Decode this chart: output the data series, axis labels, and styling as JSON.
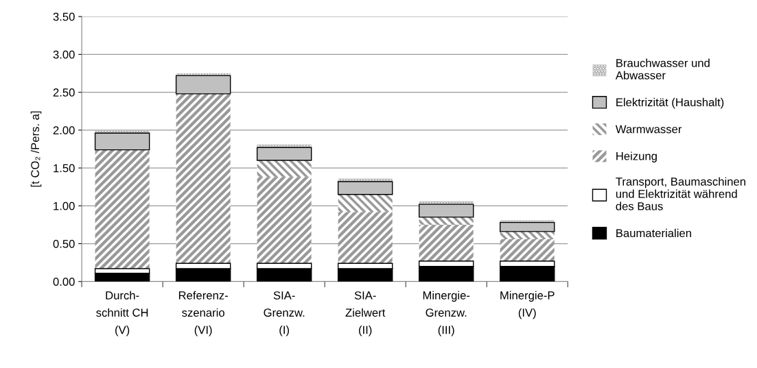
{
  "chart_data": {
    "type": "bar",
    "stacked": true,
    "ylabel": "[t CO₂ /Pers. a]",
    "categories": [
      "Durch-\nschnitt CH\n(V)",
      "Referenz-\nszenario\n(VI)",
      "SIA-\nGrenzw.\n(I)",
      "SIA-\nZielwert\n(II)",
      "Minergie-\nGrenzw.\n(III)",
      "Minergie-P\n(IV)"
    ],
    "series": [
      {
        "name": "Baumaterialien",
        "color": "#000000",
        "values": [
          0.11,
          0.17,
          0.17,
          0.17,
          0.2,
          0.2
        ]
      },
      {
        "name": "Transport, Baumaschinen\nund Elektrizität während\ndes Baus",
        "color": "#ffffff",
        "values": [
          0.06,
          0.07,
          0.07,
          0.07,
          0.07,
          0.07
        ]
      },
      {
        "name": "Heizung",
        "color": "#999999",
        "values": [
          1.57,
          2.24,
          1.14,
          0.68,
          0.48,
          0.29
        ]
      },
      {
        "name": "Warmwasser",
        "color": "#ffffff",
        "values": [
          0,
          0,
          0.22,
          0.23,
          0.1,
          0.1
        ]
      },
      {
        "name": "Elektrizität (Haushalt)",
        "color": "#c0c0c0",
        "values": [
          0.22,
          0.24,
          0.17,
          0.17,
          0.17,
          0.12
        ]
      },
      {
        "name": "Brauchwasser und\nAbwasser",
        "color": "#ffffff",
        "values": [
          0.04,
          0.03,
          0.04,
          0.04,
          0.04,
          0.03
        ]
      }
    ],
    "ylim": [
      0,
      3.5
    ],
    "yticks": [
      {
        "value": 0,
        "label": "0.00"
      },
      {
        "value": 0.5,
        "label": "0.50"
      },
      {
        "value": 1,
        "label": "1.00"
      },
      {
        "value": 1.5,
        "label": "1.50"
      },
      {
        "value": 2,
        "label": "2.00"
      },
      {
        "value": 2.5,
        "label": "2.50"
      },
      {
        "value": 3,
        "label": "3.00"
      },
      {
        "value": 3.5,
        "label": "3.50"
      }
    ],
    "grid": "y",
    "legend": "right"
  }
}
